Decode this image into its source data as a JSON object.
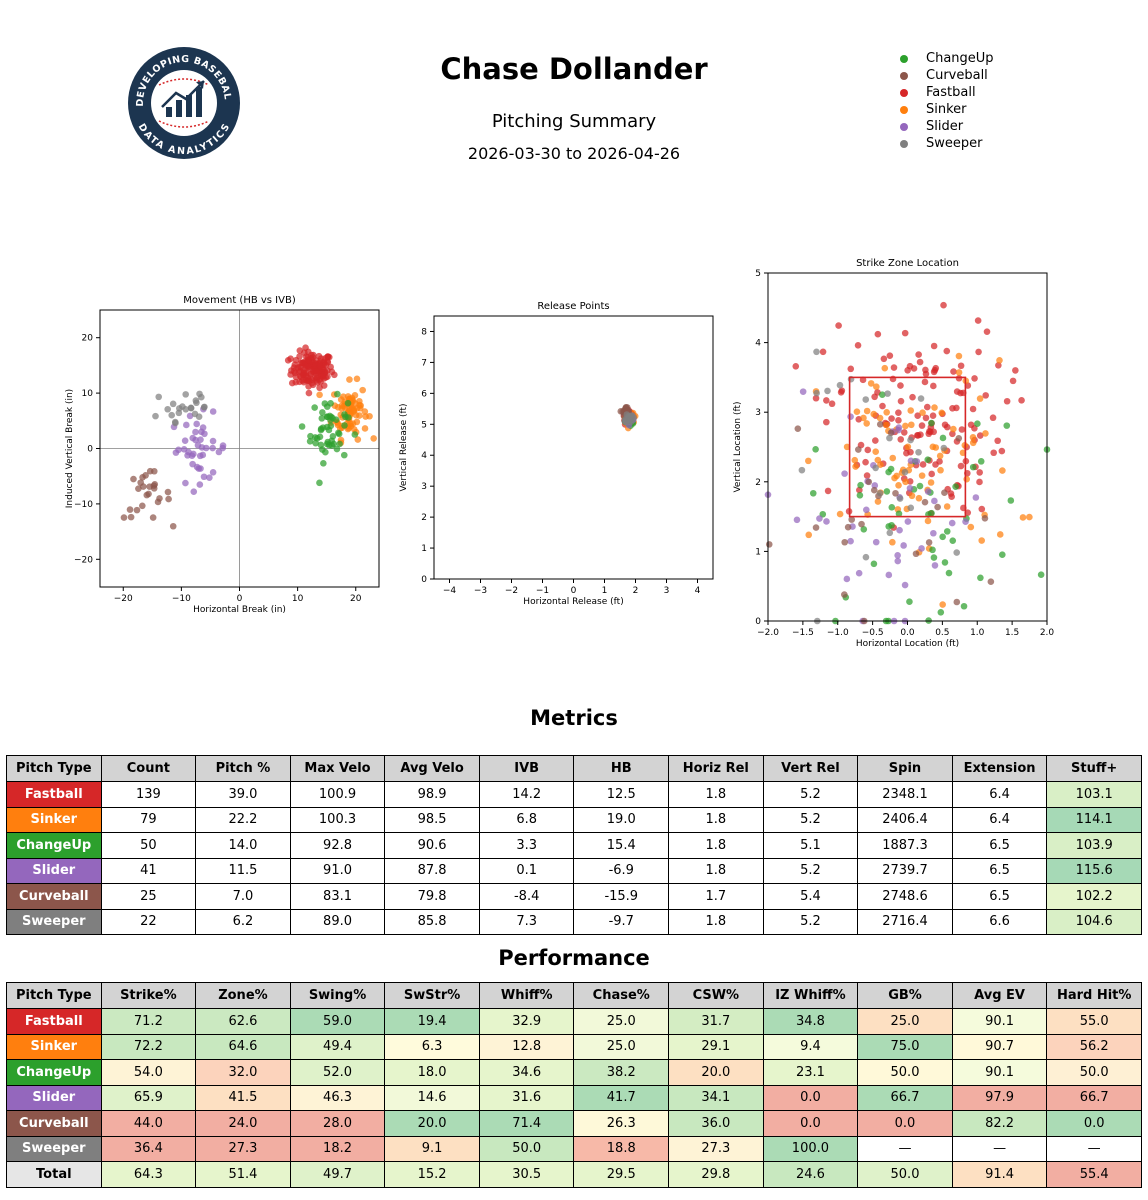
{
  "header": {
    "title": "Chase Dollander",
    "subtitle": "Pitching Summary",
    "date_range": "2026-03-30 to 2026-04-26",
    "logo": {
      "top_text": "DEVELOPING BASEBALL",
      "bottom_text": "DATA ANALYTICS"
    }
  },
  "pitch_colors": {
    "ChangeUp": "#2ca02c",
    "Curveball": "#8c564b",
    "Fastball": "#d62728",
    "Sinker": "#ff7f0e",
    "Slider": "#9467bd",
    "Sweeper": "#7f7f7f"
  },
  "legend": [
    "ChangeUp",
    "Curveball",
    "Fastball",
    "Sinker",
    "Slider",
    "Sweeper"
  ],
  "chart_data": [
    {
      "type": "scatter",
      "title": "Movement (HB vs IVB)",
      "xlabel": "Horizontal Break (in)",
      "ylabel": "Induced Vertical Break (in)",
      "xlim": [
        -24,
        24
      ],
      "ylim": [
        -25,
        25
      ],
      "xticks": [
        -20,
        -10,
        0,
        10,
        20
      ],
      "yticks": [
        -20,
        -10,
        0,
        10,
        20
      ],
      "reference_lines": {
        "x": 0,
        "y": 0
      },
      "clusters": [
        {
          "name": "Fastball",
          "center": [
            12.5,
            14.2
          ],
          "spread": [
            1.8,
            1.6
          ],
          "count": 139
        },
        {
          "name": "Sinker",
          "center": [
            19.0,
            6.8
          ],
          "spread": [
            1.5,
            2.5
          ],
          "count": 79
        },
        {
          "name": "ChangeUp",
          "center": [
            15.4,
            3.3
          ],
          "spread": [
            1.6,
            2.8
          ],
          "count": 50
        },
        {
          "name": "Slider",
          "center": [
            -6.9,
            0.1
          ],
          "spread": [
            2.5,
            3.0
          ],
          "count": 41
        },
        {
          "name": "Curveball",
          "center": [
            -15.9,
            -8.4
          ],
          "spread": [
            2.0,
            2.2
          ],
          "count": 25
        },
        {
          "name": "Sweeper",
          "center": [
            -9.7,
            7.3
          ],
          "spread": [
            3.0,
            2.4
          ],
          "count": 22
        }
      ]
    },
    {
      "type": "scatter",
      "title": "Release Points",
      "xlabel": "Horizontal Release (ft)",
      "ylabel": "Vertical Release (ft)",
      "xlim": [
        -4.5,
        4.5
      ],
      "ylim": [
        0,
        8.5
      ],
      "xticks": [
        -4,
        -3,
        -2,
        -1,
        0,
        1,
        2,
        3,
        4
      ],
      "yticks": [
        0,
        1,
        2,
        3,
        4,
        5,
        6,
        7,
        8
      ],
      "clusters": [
        {
          "name": "Fastball",
          "center": [
            1.8,
            5.2
          ],
          "spread": [
            0.06,
            0.08
          ],
          "count": 139
        },
        {
          "name": "Sinker",
          "center": [
            1.8,
            5.2
          ],
          "spread": [
            0.06,
            0.08
          ],
          "count": 79
        },
        {
          "name": "ChangeUp",
          "center": [
            1.8,
            5.1
          ],
          "spread": [
            0.06,
            0.08
          ],
          "count": 50
        },
        {
          "name": "Slider",
          "center": [
            1.8,
            5.2
          ],
          "spread": [
            0.06,
            0.08
          ],
          "count": 41
        },
        {
          "name": "Curveball",
          "center": [
            1.7,
            5.4
          ],
          "spread": [
            0.06,
            0.08
          ],
          "count": 25
        },
        {
          "name": "Sweeper",
          "center": [
            1.8,
            5.2
          ],
          "spread": [
            0.06,
            0.08
          ],
          "count": 22
        }
      ]
    },
    {
      "type": "scatter",
      "title": "Strike Zone Location",
      "xlabel": "Horizontal Location (ft)",
      "ylabel": "Vertical Location (ft)",
      "xlim": [
        -2.0,
        2.0
      ],
      "ylim": [
        0,
        5
      ],
      "xticks": [
        -2.0,
        -1.5,
        -1.0,
        -0.5,
        0.0,
        0.5,
        1.0,
        1.5,
        2.0
      ],
      "yticks": [
        0,
        1,
        2,
        3,
        4,
        5
      ],
      "strike_zone": {
        "x": [
          -0.83,
          0.83
        ],
        "y": [
          1.5,
          3.5
        ]
      },
      "clusters": [
        {
          "name": "Fastball",
          "center": [
            0.1,
            2.9
          ],
          "spread": [
            0.65,
            0.7
          ],
          "count": 139
        },
        {
          "name": "Sinker",
          "center": [
            0.15,
            2.2
          ],
          "spread": [
            0.7,
            0.75
          ],
          "count": 79
        },
        {
          "name": "ChangeUp",
          "center": [
            0.2,
            1.5
          ],
          "spread": [
            0.8,
            0.8
          ],
          "count": 50
        },
        {
          "name": "Slider",
          "center": [
            -0.3,
            1.5
          ],
          "spread": [
            0.75,
            0.8
          ],
          "count": 41
        },
        {
          "name": "Curveball",
          "center": [
            -0.2,
            1.5
          ],
          "spread": [
            0.8,
            0.8
          ],
          "count": 25
        },
        {
          "name": "Sweeper",
          "center": [
            -0.2,
            2.2
          ],
          "spread": [
            0.8,
            0.8
          ],
          "count": 22
        }
      ]
    }
  ],
  "metrics": {
    "heading": "Metrics",
    "columns": [
      "Pitch Type",
      "Count",
      "Pitch %",
      "Max Velo",
      "Avg Velo",
      "IVB",
      "HB",
      "Horiz Rel",
      "Vert Rel",
      "Spin",
      "Extension",
      "Stuff+"
    ],
    "rows": [
      {
        "pitch": "Fastball",
        "values": [
          "139",
          "39.0",
          "100.9",
          "98.9",
          "14.2",
          "12.5",
          "1.8",
          "5.2",
          "2348.1",
          "6.4",
          "103.1"
        ],
        "stuff_color": "#d9efc6"
      },
      {
        "pitch": "Sinker",
        "values": [
          "79",
          "22.2",
          "100.3",
          "98.5",
          "6.8",
          "19.0",
          "1.8",
          "5.2",
          "2406.4",
          "6.4",
          "114.1"
        ],
        "stuff_color": "#a6d9b6"
      },
      {
        "pitch": "ChangeUp",
        "values": [
          "50",
          "14.0",
          "92.8",
          "90.6",
          "3.3",
          "15.4",
          "1.8",
          "5.1",
          "1887.3",
          "6.5",
          "103.9"
        ],
        "stuff_color": "#d9efc6"
      },
      {
        "pitch": "Slider",
        "values": [
          "41",
          "11.5",
          "91.0",
          "87.8",
          "0.1",
          "-6.9",
          "1.8",
          "5.2",
          "2739.7",
          "6.5",
          "115.6"
        ],
        "stuff_color": "#a6d9b6"
      },
      {
        "pitch": "Curveball",
        "values": [
          "25",
          "7.0",
          "83.1",
          "79.8",
          "-8.4",
          "-15.9",
          "1.7",
          "5.4",
          "2748.6",
          "6.5",
          "102.2"
        ],
        "stuff_color": "#e6f5cc"
      },
      {
        "pitch": "Sweeper",
        "values": [
          "22",
          "6.2",
          "89.0",
          "85.8",
          "7.3",
          "-9.7",
          "1.8",
          "5.2",
          "2716.4",
          "6.6",
          "104.6"
        ],
        "stuff_color": "#d9efc6"
      }
    ]
  },
  "performance": {
    "heading": "Performance",
    "columns": [
      "Pitch Type",
      "Strike%",
      "Zone%",
      "Swing%",
      "SwStr%",
      "Whiff%",
      "Chase%",
      "CSW%",
      "IZ Whiff%",
      "GB%",
      "Avg EV",
      "Hard Hit%"
    ],
    "rows": [
      {
        "pitch": "Fastball",
        "values": [
          "71.2",
          "62.6",
          "59.0",
          "19.4",
          "32.9",
          "25.0",
          "31.7",
          "34.8",
          "25.0",
          "90.1",
          "55.0"
        ],
        "colors": [
          "#cbe9c1",
          "#cbe9c1",
          "#abdbb5",
          "#abdbb5",
          "#e6f5cc",
          "#f2f9d9",
          "#d4edc3",
          "#abdbb5",
          "#fde0c2",
          "#f5fbdc",
          "#fde0c2"
        ]
      },
      {
        "pitch": "Sinker",
        "values": [
          "72.2",
          "64.6",
          "49.4",
          "6.3",
          "12.8",
          "25.0",
          "29.1",
          "9.4",
          "75.0",
          "90.7",
          "56.2"
        ],
        "colors": [
          "#c8e8bf",
          "#c8e8bf",
          "#dff2ca",
          "#fffbdc",
          "#fef3d6",
          "#f2f9d9",
          "#e6f5cc",
          "#f5fbdc",
          "#abdbb5",
          "#fff9d9",
          "#fcd3bc"
        ]
      },
      {
        "pitch": "ChangeUp",
        "values": [
          "54.0",
          "32.0",
          "52.0",
          "18.0",
          "34.6",
          "38.2",
          "20.0",
          "23.1",
          "50.0",
          "90.1",
          "50.0"
        ],
        "colors": [
          "#fef3d6",
          "#fcd3bc",
          "#dff2ca",
          "#e6f5cc",
          "#e6f5cc",
          "#cbe9c1",
          "#fde0c2",
          "#e6f5cc",
          "#fff9d9",
          "#f5fbdc",
          "#fef0d4"
        ]
      },
      {
        "pitch": "Slider",
        "values": [
          "65.9",
          "41.5",
          "46.3",
          "14.6",
          "31.6",
          "41.7",
          "34.1",
          "0.0",
          "66.7",
          "97.9",
          "66.7"
        ],
        "colors": [
          "#dff2ca",
          "#fde0c2",
          "#fef3d6",
          "#f2f9d9",
          "#e6f5cc",
          "#abdbb5",
          "#c8e8bf",
          "#f2aea2",
          "#abdbb5",
          "#f2aea2",
          "#f2aea2"
        ]
      },
      {
        "pitch": "Curveball",
        "values": [
          "44.0",
          "24.0",
          "28.0",
          "20.0",
          "71.4",
          "26.3",
          "36.0",
          "0.0",
          "0.0",
          "82.2",
          "0.0"
        ],
        "colors": [
          "#f2aea2",
          "#f2aea2",
          "#f2aea2",
          "#abdbb5",
          "#abdbb5",
          "#fef9d9",
          "#c8e8bf",
          "#f2aea2",
          "#f2aea2",
          "#c8e8bf",
          "#abdbb5"
        ]
      },
      {
        "pitch": "Sweeper",
        "values": [
          "36.4",
          "27.3",
          "18.2",
          "9.1",
          "50.0",
          "18.8",
          "27.3",
          "100.0",
          "—",
          "—",
          "—"
        ],
        "colors": [
          "#f2aea2",
          "#f2aea2",
          "#f2aea2",
          "#fde0c2",
          "#c8e8bf",
          "#f7b9a8",
          "#fef3d6",
          "#abdbb5",
          "#ffffff",
          "#ffffff",
          "#ffffff"
        ]
      }
    ],
    "total": {
      "label": "Total",
      "values": [
        "64.3",
        "51.4",
        "49.7",
        "15.2",
        "30.5",
        "29.5",
        "29.8",
        "24.6",
        "50.0",
        "91.4",
        "55.4"
      ],
      "colors": [
        "#e6f5cc",
        "#e6f5cc",
        "#dff2ca",
        "#e6f5cc",
        "#e6f5cc",
        "#e6f5cc",
        "#e6f5cc",
        "#c8e8bf",
        "#dff2ca",
        "#fde0c2",
        "#f2aea2"
      ]
    }
  }
}
